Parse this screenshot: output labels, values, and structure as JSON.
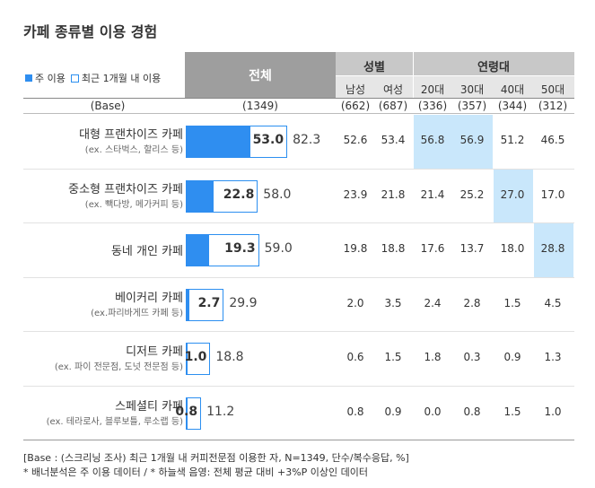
{
  "title": "카페 종류별 이용 경험",
  "legend": {
    "main": "주 이용",
    "recent": "최근 1개월 내 이용"
  },
  "header": {
    "total": "전체",
    "groups": [
      {
        "label": "성별"
      },
      {
        "label": "연령대"
      }
    ],
    "subcols": [
      "남성",
      "여성",
      "20대",
      "30대",
      "40대",
      "50대"
    ]
  },
  "base": {
    "label": "(Base)",
    "total": "(1349)",
    "subs": [
      "(662)",
      "(687)",
      "(336)",
      "(357)",
      "(344)",
      "(312)"
    ]
  },
  "colors": {
    "bar": "#2f8ef0",
    "highlight": "#c9e7fb",
    "header_dark": "#9e9e9e",
    "header": "#c8c8c8"
  },
  "chart_data": {
    "type": "bar",
    "title": "카페 종류별 이용 경험",
    "categories": [
      "대형 프랜차이즈 카페",
      "중소형 프랜차이즈 카페",
      "동네 개인 카페",
      "베이커리 카페",
      "디저트 카페",
      "스페셜티 카페"
    ],
    "category_notes": [
      "(ex. 스타벅스, 할리스 등)",
      "(ex. 빽다방, 메가커피 등)",
      "",
      "(ex.파리바게뜨 카페 등)",
      "(ex. 파이 전문점, 도넛 전문점 등)",
      "(ex. 테라로사, 블루보틀, 루소랩 등)"
    ],
    "series": [
      {
        "name": "주 이용",
        "values": [
          53.0,
          22.8,
          19.3,
          2.7,
          1.0,
          0.8
        ]
      },
      {
        "name": "최근 1개월 내 이용",
        "values": [
          82.3,
          58.0,
          59.0,
          29.9,
          18.8,
          11.2
        ]
      }
    ],
    "xlim": [
      0,
      100
    ],
    "table": {
      "columns": [
        "남성",
        "여성",
        "20대",
        "30대",
        "40대",
        "50대"
      ],
      "rows": [
        [
          "52.6",
          "53.4",
          "56.8",
          "56.9",
          "51.2",
          "46.5"
        ],
        [
          "23.9",
          "21.8",
          "21.4",
          "25.2",
          "27.0",
          "17.0"
        ],
        [
          "19.8",
          "18.8",
          "17.6",
          "13.7",
          "18.0",
          "28.8"
        ],
        [
          "2.0",
          "3.5",
          "2.4",
          "2.8",
          "1.5",
          "4.5"
        ],
        [
          "0.6",
          "1.5",
          "1.8",
          "0.3",
          "0.9",
          "1.3"
        ],
        [
          "0.8",
          "0.9",
          "0.0",
          "0.8",
          "1.5",
          "1.0"
        ]
      ],
      "highlighted": [
        [
          0,
          2
        ],
        [
          0,
          3
        ],
        [
          1,
          4
        ],
        [
          2,
          5
        ]
      ]
    }
  },
  "footnotes": [
    "[Base : (스크리닝 조사) 최근 1개월 내 커피전문점 이용한 자, N=1349, 단수/복수응답, %]",
    "* 배너분석은 주 이용 데이터 / * 하늘색 음영: 전체 평균 대비 +3%P 이상인 데이터"
  ]
}
